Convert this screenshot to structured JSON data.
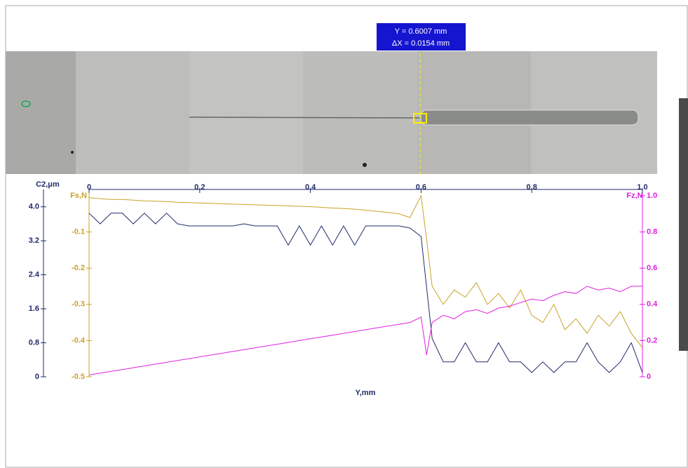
{
  "chart_data": {
    "type": "line",
    "cursor_labels": [
      "Y = 0.6007 mm",
      "ΔX = 0.0154 mm"
    ],
    "x_label": "Y,mm",
    "y_label": "C2,μm",
    "y2_label": "Fz,N",
    "y3_label": "Fs,N",
    "xlim": [
      0,
      1
    ],
    "xticks": [
      0,
      0.2,
      0.4,
      0.6,
      0.8,
      {
        "value": 1,
        "label": "1.0"
      }
    ],
    "ylim": [
      0,
      4.26
    ],
    "yticks": [
      0,
      0.8,
      1.6,
      2.4,
      3.2,
      {
        "value": 4,
        "label": "4.0"
      }
    ],
    "y2lim": [
      0,
      1
    ],
    "y2ticks": [
      0,
      0.2,
      0.4,
      0.6,
      0.8,
      {
        "value": 1,
        "label": "1.0"
      }
    ],
    "y3lim": [
      -0.5,
      0
    ],
    "y3ticks": [
      -0.1,
      -0.2,
      -0.3,
      -0.4,
      -0.5
    ],
    "x": [
      0,
      0.02,
      0.04,
      0.06,
      0.08,
      0.1,
      0.12,
      0.14,
      0.16,
      0.18,
      0.2,
      0.22,
      0.24,
      0.26,
      0.28,
      0.3,
      0.32,
      0.34,
      0.36,
      0.38,
      0.4,
      0.42,
      0.44,
      0.46,
      0.48,
      0.5,
      0.52,
      0.54,
      0.56,
      0.58,
      0.6,
      0.61,
      0.62,
      0.64,
      0.66,
      0.68,
      0.7,
      0.72,
      0.74,
      0.76,
      0.78,
      0.8,
      0.82,
      0.84,
      0.86,
      0.88,
      0.9,
      0.92,
      0.94,
      0.96,
      0.98,
      1
    ],
    "series": [
      {
        "axis": "y",
        "color": "#1f2a6b",
        "values": [
          3.85,
          3.6,
          3.85,
          3.85,
          3.6,
          3.85,
          3.6,
          3.85,
          3.6,
          3.55,
          3.55,
          3.55,
          3.55,
          3.55,
          3.6,
          3.55,
          3.55,
          3.55,
          3.1,
          3.55,
          3.1,
          3.55,
          3.1,
          3.55,
          3.1,
          3.55,
          3.55,
          3.55,
          3.55,
          3.5,
          3.3,
          2.1,
          0.9,
          0.35,
          0.35,
          0.8,
          0.35,
          0.35,
          0.8,
          0.35,
          0.35,
          0.1,
          0.35,
          0.1,
          0.35,
          0.35,
          0.8,
          0.35,
          0.1,
          0.35,
          0.8,
          0.1
        ]
      },
      {
        "axis": "y3",
        "color": "#c9a227",
        "values": [
          -0.005,
          -0.008,
          -0.01,
          -0.01,
          -0.012,
          -0.014,
          -0.015,
          -0.016,
          -0.018,
          -0.019,
          -0.02,
          -0.021,
          -0.022,
          -0.023,
          -0.024,
          -0.025,
          -0.026,
          -0.027,
          -0.028,
          -0.029,
          -0.03,
          -0.032,
          -0.034,
          -0.035,
          -0.037,
          -0.04,
          -0.043,
          -0.046,
          -0.05,
          -0.06,
          0,
          -0.12,
          -0.25,
          -0.3,
          -0.26,
          -0.28,
          -0.24,
          -0.3,
          -0.27,
          -0.31,
          -0.26,
          -0.33,
          -0.35,
          -0.3,
          -0.37,
          -0.34,
          -0.38,
          -0.33,
          -0.36,
          -0.32,
          -0.38,
          -0.42
        ]
      },
      {
        "axis": "y2",
        "color": "#e020e0",
        "values": [
          0.01,
          0.02,
          0.03,
          0.04,
          0.05,
          0.06,
          0.07,
          0.08,
          0.09,
          0.1,
          0.11,
          0.12,
          0.13,
          0.14,
          0.15,
          0.16,
          0.17,
          0.18,
          0.19,
          0.2,
          0.21,
          0.22,
          0.23,
          0.24,
          0.25,
          0.26,
          0.27,
          0.28,
          0.29,
          0.3,
          0.33,
          0.12,
          0.3,
          0.34,
          0.32,
          0.36,
          0.37,
          0.35,
          0.38,
          0.39,
          0.41,
          0.43,
          0.42,
          0.45,
          0.47,
          0.46,
          0.5,
          0.48,
          0.49,
          0.47,
          0.5,
          0.5
        ]
      }
    ]
  }
}
